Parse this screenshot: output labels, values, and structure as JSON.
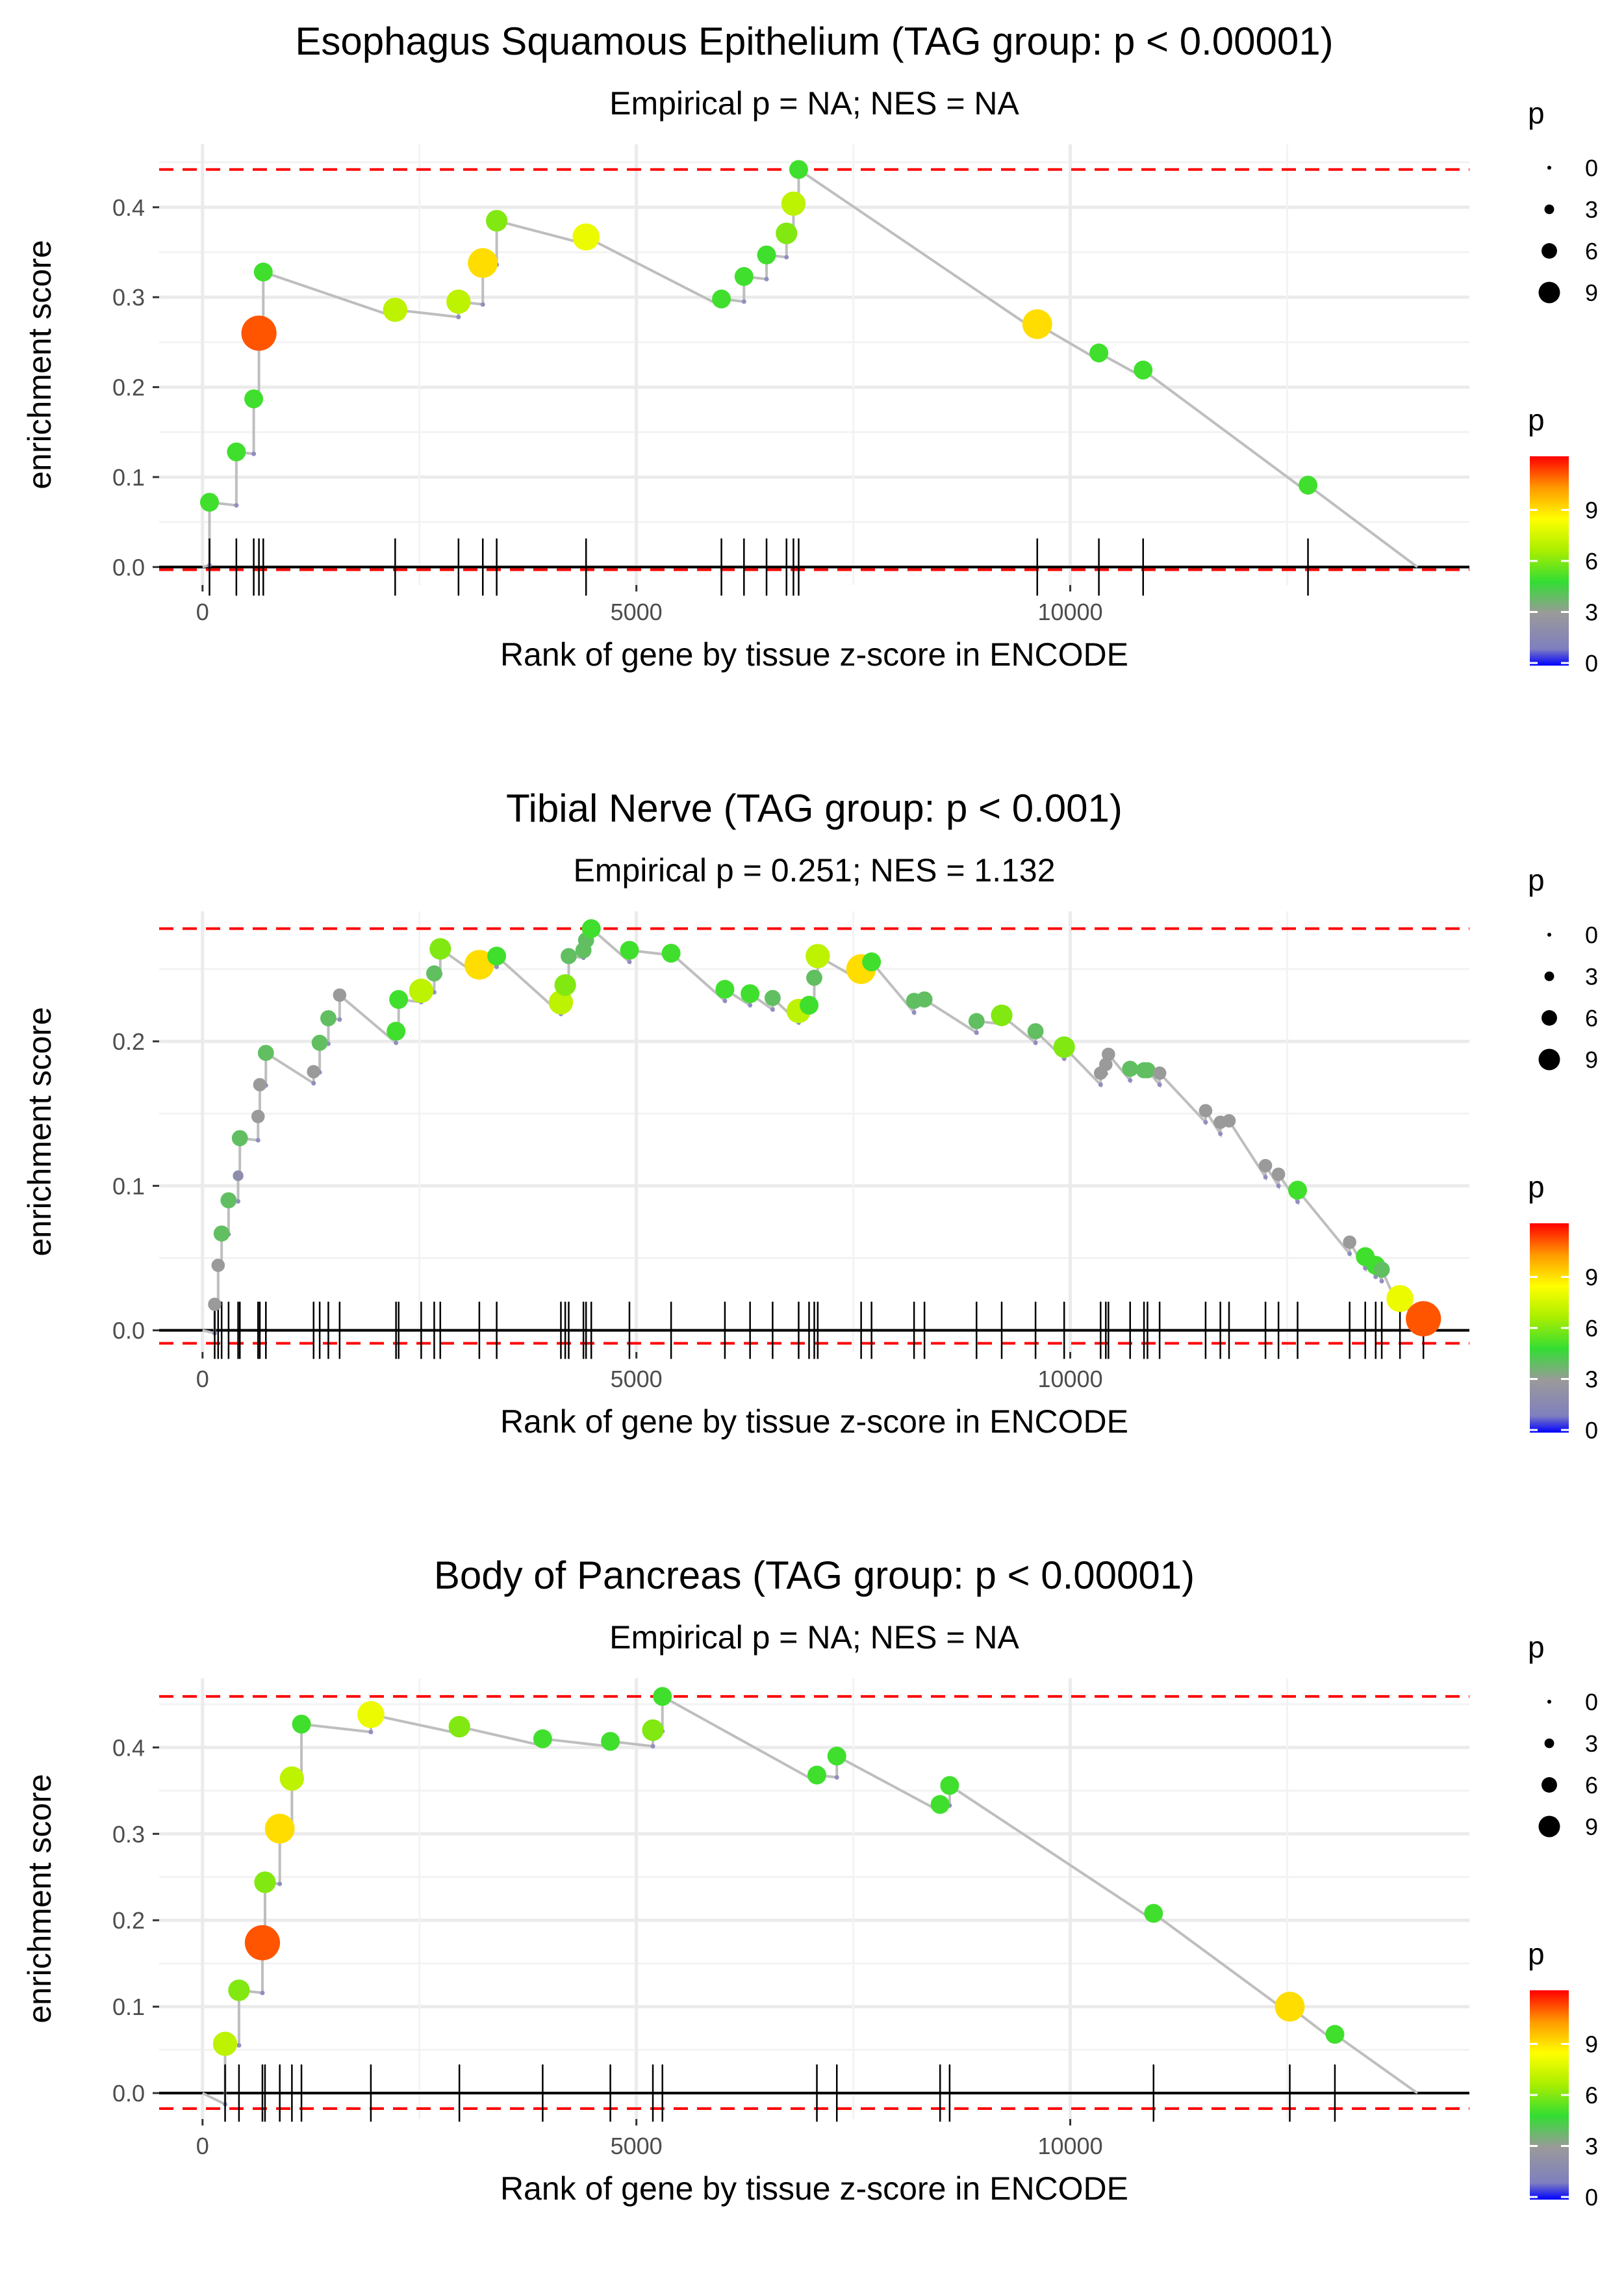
{
  "chart_data": [
    {
      "type": "scatter",
      "title": "Esophagus Squamous Epithelium (TAG group: p < 0.00001)",
      "subtitle": "Empirical p = NA; NES = NA",
      "xlabel": "Rank of gene by tissue z-score in ENCODE",
      "ylabel": "enrichment score",
      "xlim": [
        -500,
        14600
      ],
      "ylim": [
        -0.02,
        0.47
      ],
      "x_ticks": [
        0,
        5000,
        10000
      ],
      "x_tick_labels": [
        "0",
        "5000",
        "10000"
      ],
      "y_ticks": [
        0.0,
        0.1,
        0.2,
        0.3,
        0.4
      ],
      "y_tick_labels": [
        "0.0",
        "0.1",
        "0.2",
        "0.3",
        "0.4"
      ],
      "max_es": 0.442,
      "min_es": -0.003,
      "start": [
        0,
        0
      ],
      "end": [
        14000,
        0
      ],
      "hits": [
        {
          "x": 80,
          "es": 0.072,
          "p": 5
        },
        {
          "x": 390,
          "es": 0.128,
          "p": 5
        },
        {
          "x": 590,
          "es": 0.187,
          "p": 5
        },
        {
          "x": 650,
          "es": 0.26,
          "p": 11
        },
        {
          "x": 700,
          "es": 0.328,
          "p": 5
        },
        {
          "x": 2220,
          "es": 0.286,
          "p": 7
        },
        {
          "x": 2950,
          "es": 0.295,
          "p": 7
        },
        {
          "x": 3230,
          "es": 0.338,
          "p": 9
        },
        {
          "x": 3390,
          "es": 0.385,
          "p": 6
        },
        {
          "x": 4420,
          "es": 0.367,
          "p": 8
        },
        {
          "x": 5980,
          "es": 0.298,
          "p": 5
        },
        {
          "x": 6240,
          "es": 0.323,
          "p": 5
        },
        {
          "x": 6500,
          "es": 0.347,
          "p": 5
        },
        {
          "x": 6730,
          "es": 0.371,
          "p": 6
        },
        {
          "x": 6810,
          "es": 0.404,
          "p": 7
        },
        {
          "x": 6870,
          "es": 0.442,
          "p": 5
        },
        {
          "x": 9620,
          "es": 0.27,
          "p": 9
        },
        {
          "x": 10330,
          "es": 0.238,
          "p": 5
        },
        {
          "x": 10840,
          "es": 0.219,
          "p": 5
        },
        {
          "x": 12740,
          "es": 0.091,
          "p": 5
        }
      ],
      "size_legend": {
        "title": "p",
        "values": [
          "0",
          "3",
          "6",
          "9"
        ]
      },
      "color_legend": {
        "title": "p",
        "values": [
          "9",
          "6",
          "3",
          "0"
        ],
        "max": 12
      }
    },
    {
      "type": "scatter",
      "title": "Tibial Nerve (TAG group: p < 0.001)",
      "subtitle": "Empirical p = 0.251; NES = 1.132",
      "xlabel": "Rank of gene by tissue z-score in ENCODE",
      "ylabel": "enrichment score",
      "xlim": [
        -500,
        14600
      ],
      "ylim": [
        -0.015,
        0.29
      ],
      "x_ticks": [
        0,
        5000,
        10000
      ],
      "x_tick_labels": [
        "0",
        "5000",
        "10000"
      ],
      "y_ticks": [
        0.0,
        0.1,
        0.2
      ],
      "y_tick_labels": [
        "0.0",
        "0.1",
        "0.2"
      ],
      "max_es": 0.278,
      "min_es": -0.009,
      "start": [
        0,
        0
      ],
      "end": [
        14000,
        0.005
      ],
      "hits": [
        {
          "x": 140,
          "es": 0.018,
          "p": 3
        },
        {
          "x": 180,
          "es": 0.045,
          "p": 3
        },
        {
          "x": 220,
          "es": 0.067,
          "p": 4
        },
        {
          "x": 300,
          "es": 0.09,
          "p": 4
        },
        {
          "x": 410,
          "es": 0.107,
          "p": 2
        },
        {
          "x": 430,
          "es": 0.133,
          "p": 4
        },
        {
          "x": 640,
          "es": 0.148,
          "p": 3
        },
        {
          "x": 660,
          "es": 0.17,
          "p": 3
        },
        {
          "x": 730,
          "es": 0.192,
          "p": 4
        },
        {
          "x": 1280,
          "es": 0.179,
          "p": 3
        },
        {
          "x": 1350,
          "es": 0.199,
          "p": 4
        },
        {
          "x": 1450,
          "es": 0.216,
          "p": 4
        },
        {
          "x": 1580,
          "es": 0.232,
          "p": 3
        },
        {
          "x": 2230,
          "es": 0.207,
          "p": 5
        },
        {
          "x": 2260,
          "es": 0.229,
          "p": 5
        },
        {
          "x": 2520,
          "es": 0.235,
          "p": 7
        },
        {
          "x": 2670,
          "es": 0.247,
          "p": 4
        },
        {
          "x": 2740,
          "es": 0.264,
          "p": 6
        },
        {
          "x": 3190,
          "es": 0.253,
          "p": 9
        },
        {
          "x": 3390,
          "es": 0.259,
          "p": 5
        },
        {
          "x": 4130,
          "es": 0.227,
          "p": 7
        },
        {
          "x": 4180,
          "es": 0.239,
          "p": 6
        },
        {
          "x": 4220,
          "es": 0.259,
          "p": 4
        },
        {
          "x": 4390,
          "es": 0.263,
          "p": 4
        },
        {
          "x": 4420,
          "es": 0.27,
          "p": 4
        },
        {
          "x": 4480,
          "es": 0.278,
          "p": 5
        },
        {
          "x": 4920,
          "es": 0.263,
          "p": 5
        },
        {
          "x": 5400,
          "es": 0.261,
          "p": 5
        },
        {
          "x": 6020,
          "es": 0.236,
          "p": 5
        },
        {
          "x": 6310,
          "es": 0.233,
          "p": 5
        },
        {
          "x": 6570,
          "es": 0.23,
          "p": 4
        },
        {
          "x": 6870,
          "es": 0.221,
          "p": 7
        },
        {
          "x": 6990,
          "es": 0.225,
          "p": 5
        },
        {
          "x": 7050,
          "es": 0.244,
          "p": 4
        },
        {
          "x": 7090,
          "es": 0.259,
          "p": 7
        },
        {
          "x": 7590,
          "es": 0.25,
          "p": 9
        },
        {
          "x": 7710,
          "es": 0.255,
          "p": 5
        },
        {
          "x": 8200,
          "es": 0.228,
          "p": 4
        },
        {
          "x": 8320,
          "es": 0.229,
          "p": 4
        },
        {
          "x": 8920,
          "es": 0.214,
          "p": 4
        },
        {
          "x": 9210,
          "es": 0.218,
          "p": 6
        },
        {
          "x": 9600,
          "es": 0.207,
          "p": 4
        },
        {
          "x": 9930,
          "es": 0.196,
          "p": 6
        },
        {
          "x": 10350,
          "es": 0.178,
          "p": 3
        },
        {
          "x": 10410,
          "es": 0.184,
          "p": 3
        },
        {
          "x": 10440,
          "es": 0.191,
          "p": 3
        },
        {
          "x": 10690,
          "es": 0.181,
          "p": 4
        },
        {
          "x": 10850,
          "es": 0.18,
          "p": 4
        },
        {
          "x": 10890,
          "es": 0.18,
          "p": 4
        },
        {
          "x": 11030,
          "es": 0.178,
          "p": 3
        },
        {
          "x": 11560,
          "es": 0.152,
          "p": 3
        },
        {
          "x": 11730,
          "es": 0.144,
          "p": 3
        },
        {
          "x": 11830,
          "es": 0.145,
          "p": 3
        },
        {
          "x": 12250,
          "es": 0.114,
          "p": 3
        },
        {
          "x": 12400,
          "es": 0.108,
          "p": 3
        },
        {
          "x": 12620,
          "es": 0.097,
          "p": 5
        },
        {
          "x": 13220,
          "es": 0.061,
          "p": 3
        },
        {
          "x": 13400,
          "es": 0.051,
          "p": 5
        },
        {
          "x": 13520,
          "es": 0.045,
          "p": 5
        },
        {
          "x": 13590,
          "es": 0.042,
          "p": 4
        },
        {
          "x": 13800,
          "es": 0.022,
          "p": 8
        },
        {
          "x": 14070,
          "es": 0.008,
          "p": 11
        }
      ],
      "size_legend": {
        "title": "p",
        "values": [
          "0",
          "3",
          "6",
          "9"
        ]
      },
      "color_legend": {
        "title": "p",
        "values": [
          "9",
          "6",
          "3",
          "0"
        ],
        "max": 12
      }
    },
    {
      "type": "scatter",
      "title": "Body of Pancreas (TAG group: p < 0.00001)",
      "subtitle": "Empirical p = NA; NES = NA",
      "xlabel": "Rank of gene by tissue z-score in ENCODE",
      "ylabel": "enrichment score",
      "xlim": [
        -500,
        14600
      ],
      "ylim": [
        -0.03,
        0.48
      ],
      "x_ticks": [
        0,
        5000,
        10000
      ],
      "x_tick_labels": [
        "0",
        "5000",
        "10000"
      ],
      "y_ticks": [
        0.0,
        0.1,
        0.2,
        0.3,
        0.4
      ],
      "y_tick_labels": [
        "0.0",
        "0.1",
        "0.2",
        "0.3",
        "0.4"
      ],
      "max_es": 0.459,
      "min_es": -0.018,
      "start": [
        0,
        0
      ],
      "end": [
        14000,
        0
      ],
      "hits": [
        {
          "x": 260,
          "es": 0.057,
          "p": 7
        },
        {
          "x": 420,
          "es": 0.119,
          "p": 6
        },
        {
          "x": 690,
          "es": 0.174,
          "p": 11
        },
        {
          "x": 720,
          "es": 0.244,
          "p": 6
        },
        {
          "x": 890,
          "es": 0.306,
          "p": 9
        },
        {
          "x": 1030,
          "es": 0.364,
          "p": 7
        },
        {
          "x": 1140,
          "es": 0.427,
          "p": 5
        },
        {
          "x": 1940,
          "es": 0.438,
          "p": 8
        },
        {
          "x": 2960,
          "es": 0.424,
          "p": 6
        },
        {
          "x": 3920,
          "es": 0.41,
          "p": 5
        },
        {
          "x": 4700,
          "es": 0.407,
          "p": 5
        },
        {
          "x": 5190,
          "es": 0.42,
          "p": 6
        },
        {
          "x": 5300,
          "es": 0.459,
          "p": 5
        },
        {
          "x": 7080,
          "es": 0.368,
          "p": 5
        },
        {
          "x": 7310,
          "es": 0.39,
          "p": 5
        },
        {
          "x": 8500,
          "es": 0.334,
          "p": 5
        },
        {
          "x": 8610,
          "es": 0.356,
          "p": 5
        },
        {
          "x": 10960,
          "es": 0.208,
          "p": 5
        },
        {
          "x": 12530,
          "es": 0.1,
          "p": 9
        },
        {
          "x": 13050,
          "es": 0.068,
          "p": 5
        }
      ],
      "size_legend": {
        "title": "p",
        "values": [
          "0",
          "3",
          "6",
          "9"
        ]
      },
      "color_legend": {
        "title": "p",
        "values": [
          "9",
          "6",
          "3",
          "0"
        ],
        "max": 12
      }
    }
  ]
}
